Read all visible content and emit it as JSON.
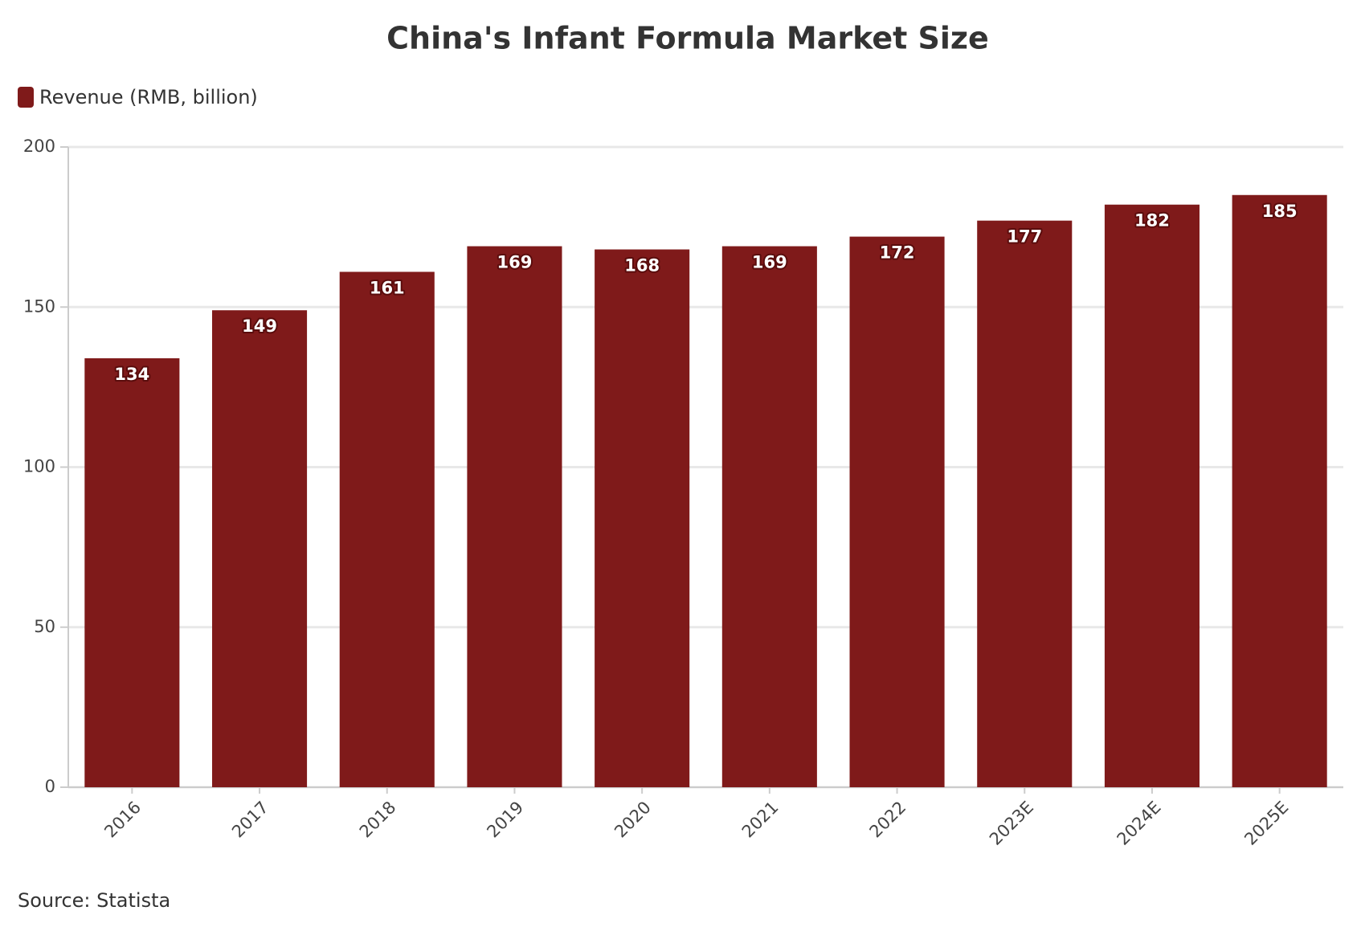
{
  "chart_data": {
    "type": "bar",
    "title": "China's Infant Formula Market Size",
    "categories": [
      "2016",
      "2017",
      "2018",
      "2019",
      "2020",
      "2021",
      "2022",
      "2023E",
      "2024E",
      "2025E"
    ],
    "series": [
      {
        "name": "Revenue (RMB, billion)",
        "color": "#7f1a1a",
        "values": [
          134,
          149,
          161,
          169,
          168,
          169,
          172,
          177,
          182,
          185
        ]
      }
    ],
    "ylim": [
      0,
      200
    ],
    "yticks": [
      0,
      50,
      100,
      150,
      200
    ],
    "grid": true,
    "legend": "top-left",
    "source": "Source: Statista"
  }
}
